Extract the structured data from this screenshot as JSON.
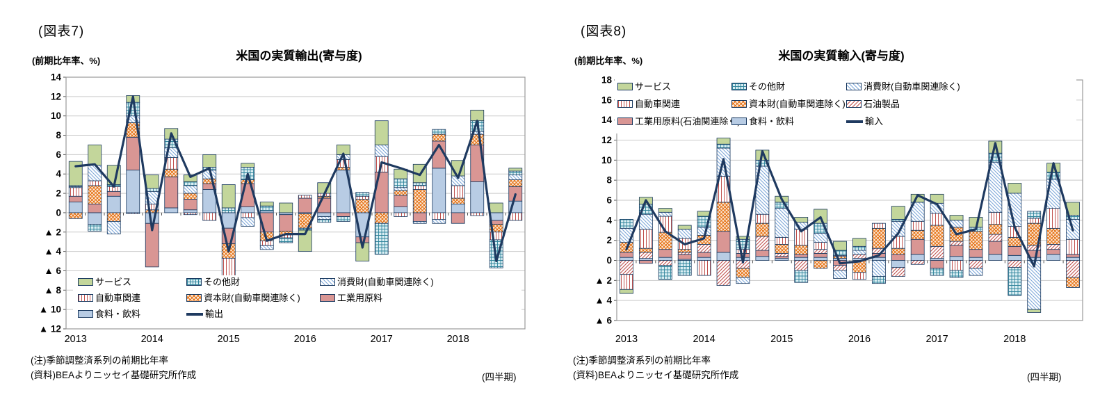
{
  "colors": {
    "line": "#1f3a60",
    "services": "#c3d69b",
    "industrial": "#d99694",
    "food": "#b8cce4",
    "other_bg": "#daeef3",
    "other_line": "#31859c",
    "consumer_line": "#7da7d8",
    "auto_line": "#c0504d",
    "capital_bg": "#fde9d9",
    "capital_line": "#e36c0a",
    "petroleum_line": "#c0504d",
    "gridline": "#c9c9c9",
    "frame": "#9a9a9a",
    "segment_border": "#17375e"
  },
  "charts": [
    {
      "figure_label": "(図表7)",
      "title": "米国の実質輸出(寄与度)",
      "unit_label": "(前期比年率、%)",
      "periodicity_label": "(四半期)",
      "notes": [
        "(注)季節調整済系列の前期比年率",
        "(資料)BEAよりニッセイ基礎研究所作成"
      ],
      "chart_data": {
        "type": "stacked-bar+line",
        "x_years": [
          "2013",
          "2014",
          "2015",
          "2016",
          "2017",
          "2018"
        ],
        "quarters_per_year": 4,
        "ylim": [
          -12,
          14
        ],
        "ytick_step": 2,
        "negative_tick_prefix": "▲",
        "grid": true,
        "legend_position": "inside-bottom-left",
        "series": [
          {
            "name": "食料・飲料",
            "key": "food",
            "style": "food",
            "values": [
              1.1,
              -1.2,
              1.7,
              4.4,
              -1.1,
              0.5,
              0.3,
              2.4,
              -1.6,
              0.6,
              0.2,
              -0.2,
              -0.1,
              -0.4,
              4.4,
              -2.5,
              0.0,
              0.6,
              0.0,
              4.6,
              0.9,
              3.2,
              -0.8,
              1.2
            ]
          },
          {
            "name": "工業用原料",
            "key": "industrial",
            "style": "industrial",
            "values": [
              0.6,
              0.9,
              0.5,
              3.4,
              -4.5,
              3.2,
              1.1,
              0.6,
              -1.6,
              2.4,
              -2.0,
              -1.7,
              1.5,
              1.5,
              -0.4,
              -0.6,
              4.2,
              1.2,
              -0.9,
              2.8,
              -1.1,
              3.8,
              -0.4,
              1.5
            ]
          },
          {
            "name": "資本財(自動車関連除く)",
            "key": "capital",
            "style": "capital",
            "values": [
              -0.6,
              1.9,
              -0.9,
              1.5,
              0.3,
              0.8,
              0.6,
              0.5,
              -1.5,
              0.4,
              -0.9,
              -0.4,
              -1.5,
              0.2,
              0.3,
              1.4,
              -1.1,
              0.5,
              2.4,
              0.7,
              0.6,
              1.1,
              -0.8,
              0.7
            ]
          },
          {
            "name": "自動車関連",
            "key": "auto",
            "style": "auto",
            "values": [
              0.9,
              0.5,
              0.5,
              -0.1,
              0.6,
              1.2,
              -0.2,
              -0.8,
              -1.8,
              -0.5,
              -0.5,
              -0.3,
              0.3,
              0.3,
              0.8,
              0.3,
              1.6,
              -0.4,
              0.4,
              -0.7,
              1.3,
              -0.3,
              -0.8,
              -0.8
            ]
          },
          {
            "name": "消費財(自動車関連除く)",
            "key": "consumer",
            "style": "consumer",
            "values": [
              0.1,
              1.6,
              -1.3,
              0.7,
              1.3,
              1.0,
              0.8,
              0.9,
              -0.4,
              -0.9,
              -0.4,
              0.0,
              0.0,
              -0.3,
              0.5,
              0.0,
              1.2,
              0.3,
              -0.2,
              -0.4,
              1.0,
              0.3,
              0.0,
              0.5
            ]
          },
          {
            "name": "その他財",
            "key": "other",
            "style": "other",
            "values": [
              0.1,
              -0.7,
              0.2,
              1.4,
              0.3,
              0.9,
              0.4,
              0.3,
              0.5,
              1.3,
              0.5,
              -0.5,
              -0.2,
              -0.3,
              -0.5,
              0.4,
              -3.2,
              0.9,
              0.3,
              0.5,
              0.0,
              1.1,
              -2.9,
              0.4
            ]
          },
          {
            "name": "サービス",
            "key": "services",
            "style": "services",
            "values": [
              2.5,
              2.1,
              2.0,
              0.7,
              1.4,
              1.1,
              0.7,
              1.3,
              2.4,
              0.4,
              0.4,
              1.0,
              -2.2,
              1.1,
              1.0,
              -1.9,
              2.5,
              1.0,
              1.9,
              0.0,
              1.6,
              1.1,
              1.0,
              0.3
            ]
          }
        ],
        "line": {
          "name": "輸出",
          "color": "#1f3a60",
          "values": [
            4.8,
            5.0,
            2.7,
            12.0,
            -1.8,
            8.2,
            3.7,
            4.6,
            -4.0,
            4.0,
            -2.9,
            -2.2,
            -2.2,
            1.9,
            6.1,
            -3.6,
            5.2,
            4.6,
            3.9,
            7.0,
            3.6,
            9.5,
            -5.0,
            1.9
          ]
        },
        "legend_rows": [
          [
            "サービス",
            "その他財",
            "消費財(自動車関連除く)"
          ],
          [
            "自動車関連",
            "資本財(自動車関連除く)",
            "工業用原料"
          ],
          [
            "食料・飲料",
            "輸出"
          ]
        ]
      }
    },
    {
      "figure_label": "(図表8)",
      "title": "米国の実質輸入(寄与度)",
      "unit_label": "(前期比年率、%)",
      "periodicity_label": "(四半期)",
      "notes": [
        "(注)季節調整済系列の前期比年率",
        "(資料)BEAよりニッセイ基礎研究所作成"
      ],
      "chart_data": {
        "type": "stacked-bar+line",
        "x_years": [
          "2013",
          "2014",
          "2015",
          "2016",
          "2017",
          "2018"
        ],
        "quarters_per_year": 4,
        "ylim": [
          -6,
          18
        ],
        "ytick_step": 2,
        "negative_tick_prefix": "▲",
        "grid": true,
        "legend_position": "inside-top",
        "series": [
          {
            "name": "食料・飲料",
            "key": "food",
            "style": "food",
            "values": [
              0.3,
              0.2,
              0.3,
              0.1,
              0.3,
              0.8,
              0.3,
              0.4,
              0.2,
              0.3,
              0.3,
              0.2,
              0.2,
              0.3,
              -0.7,
              0.6,
              0.2,
              0.4,
              0.3,
              0.6,
              0.5,
              0.3,
              0.6,
              0.3
            ]
          },
          {
            "name": "工業用原料(石油関連除く)",
            "key": "industrial",
            "style": "industrial",
            "values": [
              0.5,
              -0.3,
              0.8,
              0.5,
              0.5,
              2.1,
              0.4,
              0.6,
              0.2,
              0.3,
              0.4,
              -0.5,
              0.0,
              0.4,
              0.6,
              1.5,
              -0.8,
              1.1,
              0.8,
              1.3,
              0.9,
              0.7,
              0.5,
              0.3
            ]
          },
          {
            "name": "石油製品",
            "key": "petroleum",
            "style": "petroleum",
            "values": [
              -1.4,
              0.6,
              -0.5,
              0.2,
              0.8,
              -2.5,
              -0.8,
              1.4,
              0.3,
              -1.0,
              0.4,
              -0.5,
              0.4,
              0.5,
              -0.9,
              -0.4,
              1.2,
              0.4,
              -0.8,
              0.7,
              -0.7,
              0.5,
              0.5,
              -1.7
            ]
          },
          {
            "name": "資本財(自動車関連除く)",
            "key": "capital",
            "style": "capital",
            "values": [
              1.0,
              0.4,
              1.7,
              0.3,
              0.9,
              2.9,
              -0.9,
              1.3,
              0.9,
              0.9,
              -0.8,
              0.2,
              -1.2,
              2.0,
              0.6,
              0.9,
              2.1,
              1.4,
              1.8,
              1.0,
              0.9,
              2.2,
              1.6,
              -1.0
            ]
          },
          {
            "name": "自動車関連",
            "key": "auto",
            "style": "auto",
            "values": [
              -1.5,
              1.9,
              1.6,
              1.1,
              -1.5,
              2.6,
              0.4,
              0.9,
              0.7,
              1.6,
              0.7,
              0.1,
              -0.7,
              0.5,
              1.2,
              0.9,
              1.2,
              -1.0,
              0.0,
              1.2,
              1.1,
              0.5,
              2.0,
              1.5
            ]
          },
          {
            "name": "消費財(自動車関連除く)",
            "key": "consumer",
            "style": "consumer",
            "values": [
              1.4,
              1.5,
              0.4,
              0.9,
              0.8,
              2.8,
              -0.6,
              4.8,
              2.9,
              0.7,
              0.9,
              -0.8,
              0.4,
              -1.6,
              1.5,
              1.9,
              1.0,
              0.7,
              -0.7,
              5.0,
              3.3,
              -4.9,
              2.9,
              2.0
            ]
          },
          {
            "name": "その他財",
            "key": "other",
            "style": "other",
            "values": [
              0.9,
              1.0,
              -1.4,
              -1.5,
              1.1,
              0.4,
              1.0,
              0.6,
              0.6,
              -1.2,
              1.0,
              0.5,
              0.4,
              -0.7,
              0.2,
              0.0,
              -0.7,
              -0.7,
              0.4,
              0.9,
              -2.8,
              0.7,
              0.7,
              0.4
            ]
          },
          {
            "name": "サービス",
            "key": "services",
            "style": "services",
            "values": [
              -0.4,
              0.7,
              0.4,
              0.4,
              0.5,
              0.6,
              0.3,
              1.0,
              0.6,
              0.5,
              1.4,
              0.9,
              0.8,
              0.0,
              1.3,
              0.8,
              0.9,
              0.5,
              1.0,
              1.2,
              1.0,
              -0.3,
              0.9,
              1.3
            ]
          }
        ],
        "line": {
          "name": "輸入",
          "color": "#1f3a60",
          "values": [
            1.1,
            6.0,
            2.9,
            1.6,
            2.2,
            10.1,
            -0.2,
            10.9,
            6.1,
            2.9,
            4.3,
            -0.3,
            -0.1,
            0.5,
            2.7,
            6.5,
            5.6,
            2.6,
            3.1,
            11.7,
            3.3,
            -0.6,
            9.7,
            3.0
          ]
        },
        "legend_rows": [
          [
            "サービス",
            "その他財",
            "消費財(自動車関連除く)"
          ],
          [
            "自動車関連",
            "資本財(自動車関連除く)",
            "石油製品"
          ],
          [
            "工業用原料(石油関連除く)",
            "食料・飲料",
            "輸入"
          ]
        ]
      }
    }
  ]
}
